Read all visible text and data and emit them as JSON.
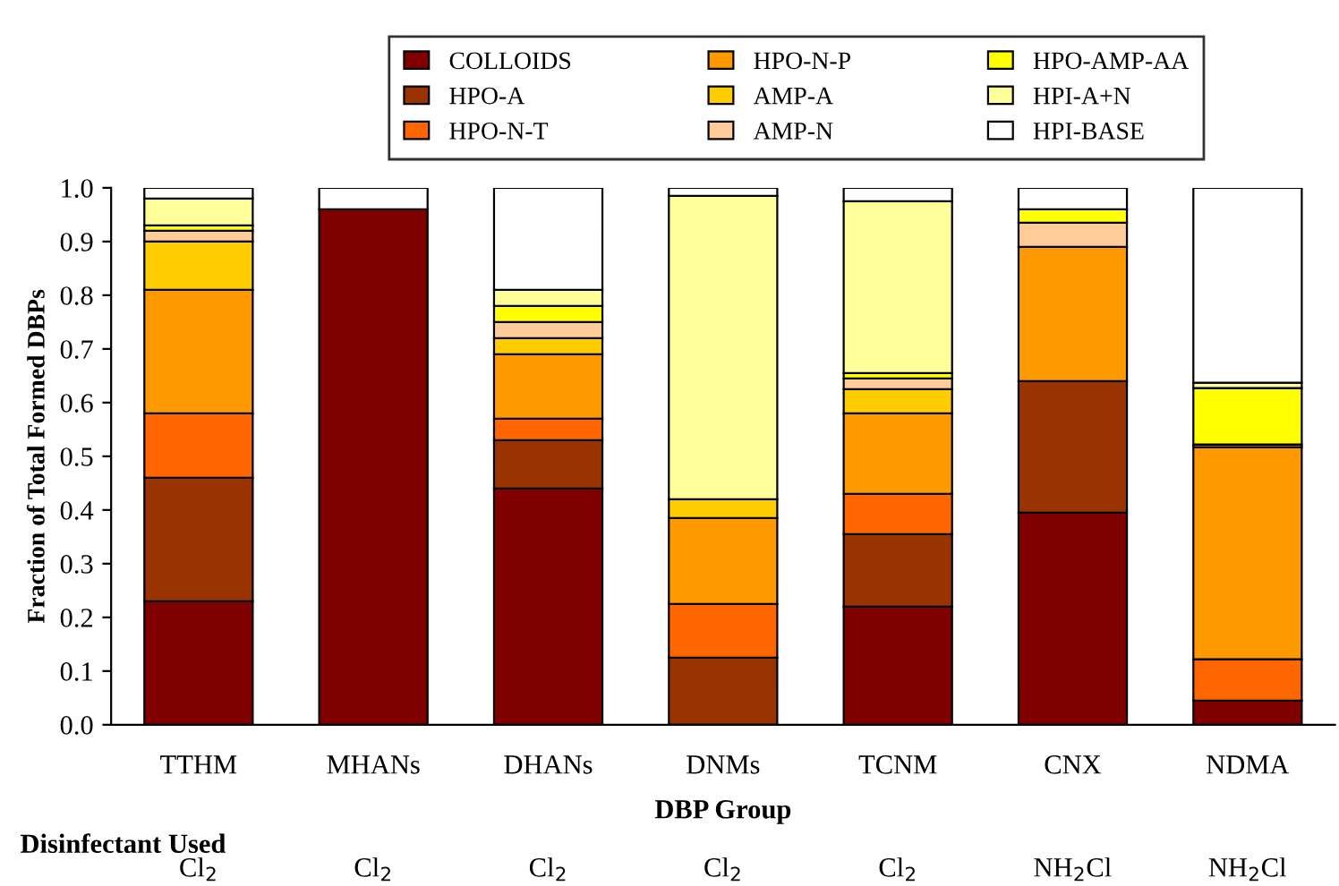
{
  "chart_data": {
    "type": "bar",
    "stacked": true,
    "xlabel": "DBP Group",
    "ylabel": "Fraction of Total Formed DBPs",
    "categories": [
      "TTHM",
      "MHANs",
      "DHANs",
      "DNMs",
      "TCNM",
      "CNX",
      "NDMA"
    ],
    "series": [
      {
        "name": "COLLOIDS",
        "color": "#800000",
        "values": [
          0.23,
          0.96,
          0.44,
          0,
          0.22,
          0.395,
          0.045
        ]
      },
      {
        "name": "HPO-A",
        "color": "#993300",
        "values": [
          0.23,
          0,
          0.09,
          0.125,
          0.135,
          0.245,
          0
        ]
      },
      {
        "name": "HPO-N-T",
        "color": "#ff6600",
        "values": [
          0.12,
          0,
          0.04,
          0.1,
          0.075,
          0,
          0.077
        ]
      },
      {
        "name": "HPO-N-P",
        "color": "#ff9900",
        "values": [
          0.23,
          0,
          0.12,
          0.16,
          0.15,
          0.25,
          0.395
        ]
      },
      {
        "name": "AMP-A",
        "color": "#ffcc00",
        "values": [
          0.09,
          0,
          0.03,
          0.035,
          0.045,
          0,
          0.005
        ]
      },
      {
        "name": "AMP-N",
        "color": "#ffcc99",
        "values": [
          0.02,
          0,
          0.03,
          0,
          0.02,
          0.045,
          0
        ]
      },
      {
        "name": "HPO-AMP-AA",
        "color": "#ffff00",
        "values": [
          0.01,
          0,
          0.03,
          0,
          0.01,
          0.025,
          0.105
        ]
      },
      {
        "name": "HPI-A+N",
        "color": "#ffff99",
        "values": [
          0.05,
          0,
          0.03,
          0.565,
          0.32,
          0,
          0.01
        ]
      },
      {
        "name": "HPI-BASE",
        "color": "#ffffff",
        "values": [
          0.02,
          0.04,
          0.19,
          0.015,
          0.025,
          0.04,
          0.363
        ]
      }
    ],
    "ylim": [
      0,
      1
    ],
    "yticks": [
      {
        "value": 0,
        "label": "0.0"
      },
      {
        "value": 0.1,
        "label": "0.1"
      },
      {
        "value": 0.2,
        "label": "0.2"
      },
      {
        "value": 0.3,
        "label": "0.3"
      },
      {
        "value": 0.4,
        "label": "0.4"
      },
      {
        "value": 0.5,
        "label": "0.5"
      },
      {
        "value": 0.6,
        "label": "0.6"
      },
      {
        "value": 0.7,
        "label": "0.7"
      },
      {
        "value": 0.8,
        "label": "0.8"
      },
      {
        "value": 0.9,
        "label": "0.9"
      },
      {
        "value": 1,
        "label": "1.0"
      }
    ],
    "grid": false,
    "legend": "top",
    "annotations": [
      "Disinfectant Used",
      "Cl$_{2}$",
      "Cl$_{2}$",
      "Cl$_{2}$",
      "Cl$_{2}$",
      "Cl$_{2}$",
      "NH$_{2}$Cl",
      "NH$_{2}$Cl"
    ]
  }
}
